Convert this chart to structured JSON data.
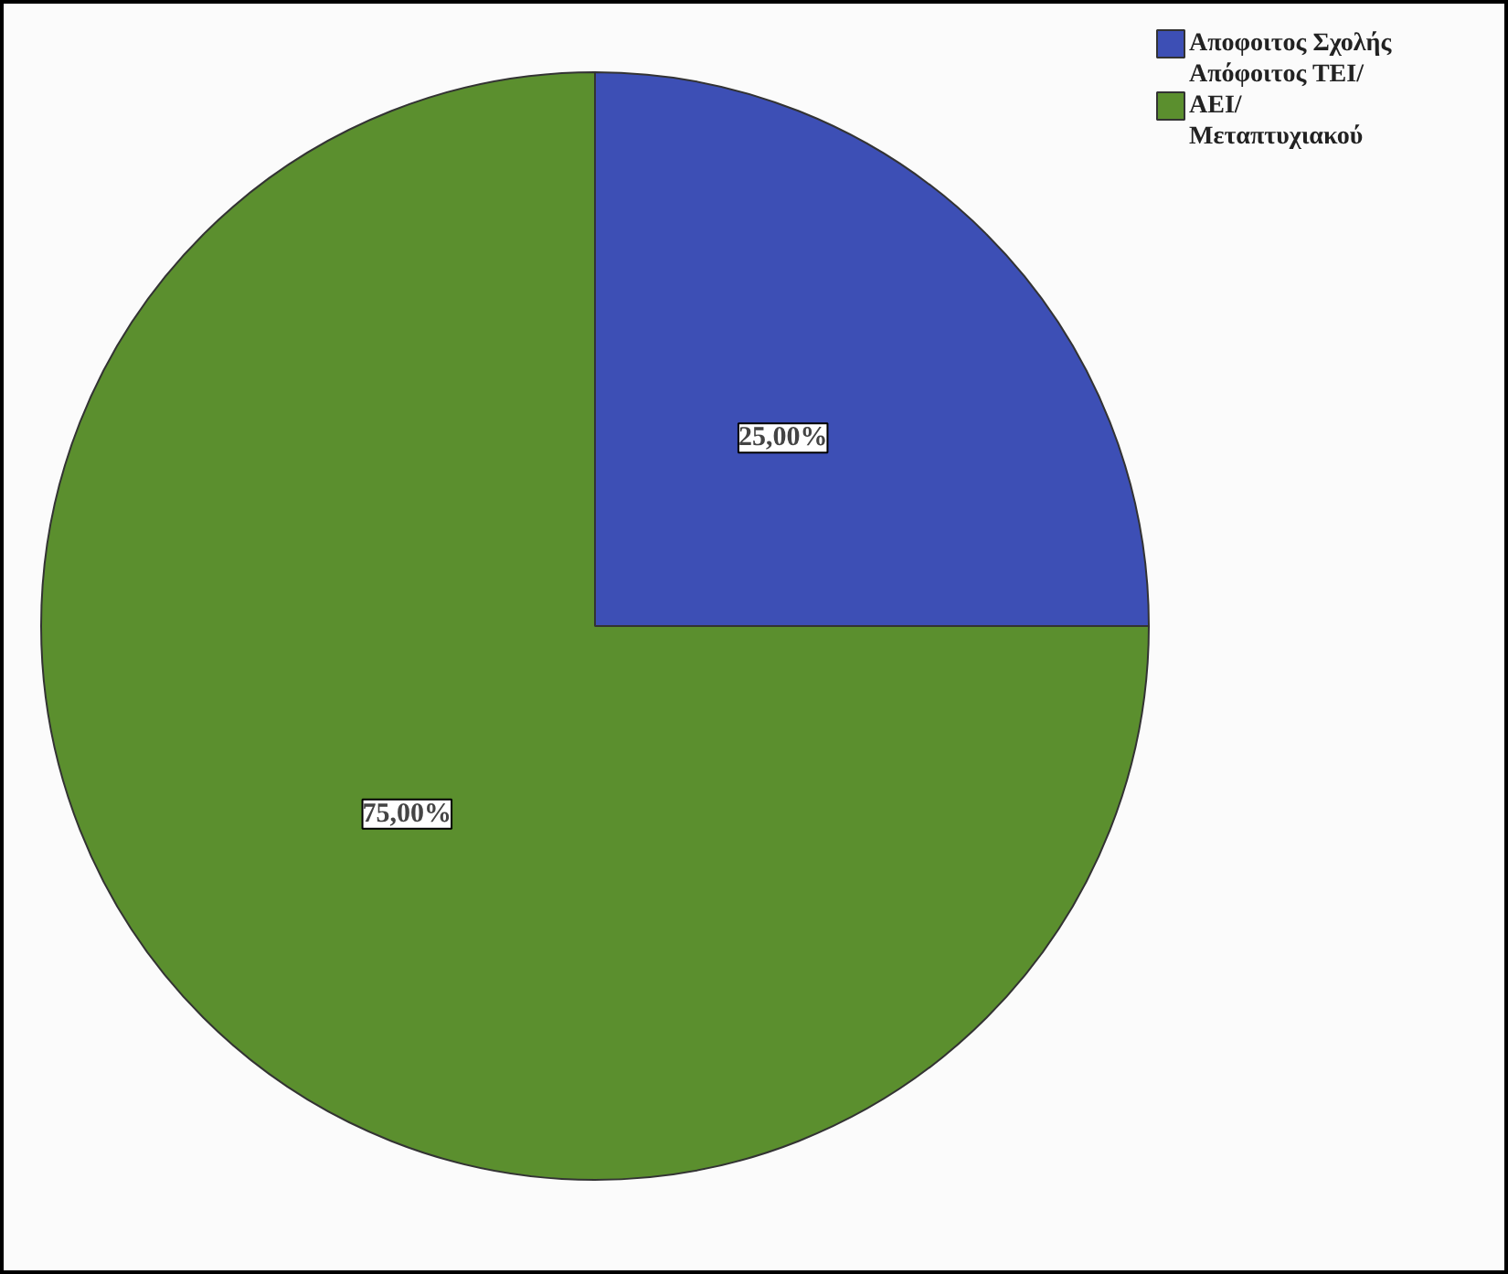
{
  "chart_data": {
    "type": "pie",
    "categories": [
      "Αποφοιτος Σχολής",
      "Απόφοιτος ΤΕΙ/ΑΕΙ/Μεταπτυχιακού"
    ],
    "values": [
      25,
      75
    ],
    "colors": [
      "#3d4fb5",
      "#5b8f2e"
    ],
    "value_labels": [
      "25,00%",
      "75,00%"
    ],
    "legend": "top right"
  }
}
